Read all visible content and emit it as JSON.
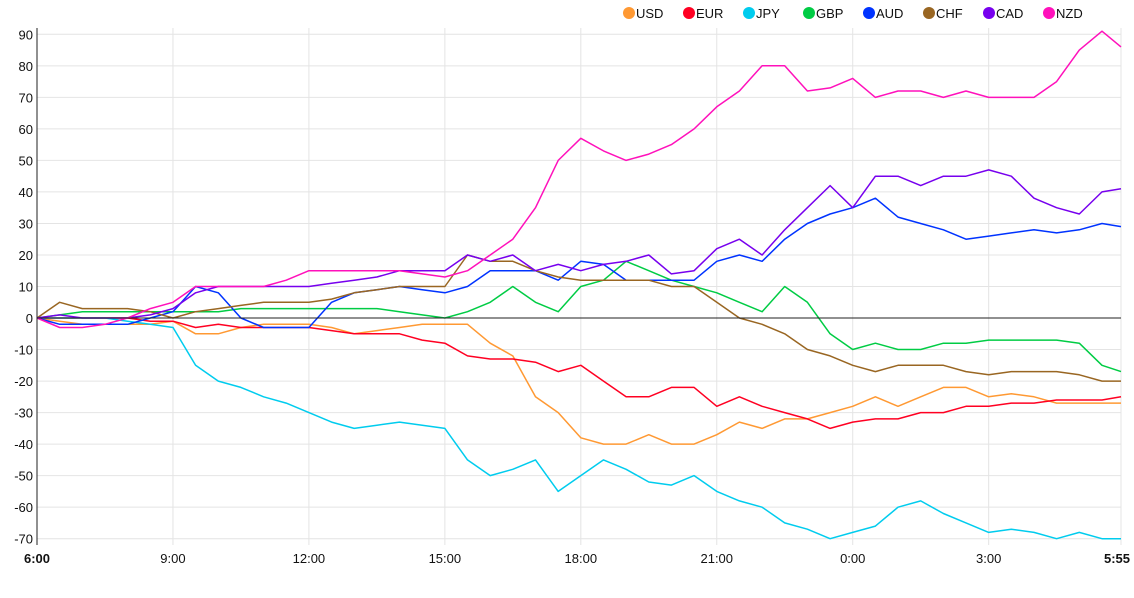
{
  "chart_data": {
    "type": "line",
    "title": "",
    "xlabel": "",
    "ylabel": "",
    "ylim": [
      -72,
      92
    ],
    "xlim_hours_from_start": [
      0,
      23.92
    ],
    "y_ticks": [
      90,
      80,
      70,
      60,
      50,
      40,
      30,
      20,
      10,
      0,
      -10,
      -20,
      -30,
      -40,
      -50,
      -60,
      -70
    ],
    "x_ticks": [
      {
        "h": 0,
        "label": "6:00",
        "bold": true
      },
      {
        "h": 3,
        "label": "9:00",
        "bold": false
      },
      {
        "h": 6,
        "label": "12:00",
        "bold": false
      },
      {
        "h": 9,
        "label": "15:00",
        "bold": false
      },
      {
        "h": 12,
        "label": "18:00",
        "bold": false
      },
      {
        "h": 15,
        "label": "21:00",
        "bold": false
      },
      {
        "h": 18,
        "label": "0:00",
        "bold": false
      },
      {
        "h": 21,
        "label": "3:00",
        "bold": false
      },
      {
        "h": 23.92,
        "label": "5:55",
        "bold": true
      }
    ],
    "grid": true,
    "legend_position": "top-right",
    "x_step_hours": 0.5,
    "x_last_hours": 23.92,
    "series": [
      {
        "name": "USD",
        "color": "#ff9933",
        "values": [
          0,
          -1,
          -2,
          -2,
          -2,
          -2,
          -1,
          -5,
          -5,
          -3,
          -2,
          -2,
          -2,
          -3,
          -5,
          -4,
          -3,
          -2,
          -2,
          -2,
          -8,
          -12,
          -25,
          -30,
          -38,
          -40,
          -40,
          -37,
          -40,
          -40,
          -37,
          -33,
          -35,
          -32,
          -32,
          -30,
          -28,
          -25,
          -28,
          -25,
          -22,
          -22,
          -25,
          -24,
          -25,
          -27,
          -27,
          -27,
          -27
        ]
      },
      {
        "name": "EUR",
        "color": "#ff0022",
        "values": [
          0,
          0,
          0,
          0,
          0,
          -1,
          -1,
          -3,
          -2,
          -3,
          -3,
          -3,
          -3,
          -4,
          -5,
          -5,
          -5,
          -7,
          -8,
          -12,
          -13,
          -13,
          -14,
          -17,
          -15,
          -20,
          -25,
          -25,
          -22,
          -22,
          -28,
          -25,
          -28,
          -30,
          -32,
          -35,
          -33,
          -32,
          -32,
          -30,
          -30,
          -28,
          -28,
          -27,
          -27,
          -26,
          -26,
          -26,
          -25
        ]
      },
      {
        "name": "JPY",
        "color": "#00ccee",
        "values": [
          0,
          0,
          0,
          0,
          -1,
          -2,
          -3,
          -15,
          -20,
          -22,
          -25,
          -27,
          -30,
          -33,
          -35,
          -34,
          -33,
          -34,
          -35,
          -45,
          -50,
          -48,
          -45,
          -55,
          -50,
          -45,
          -48,
          -52,
          -53,
          -50,
          -55,
          -58,
          -60,
          -65,
          -67,
          -70,
          -68,
          -66,
          -60,
          -58,
          -62,
          -65,
          -68,
          -67,
          -68,
          -70,
          -68,
          -70,
          -70
        ]
      },
      {
        "name": "GBP",
        "color": "#00cc44",
        "values": [
          0,
          1,
          2,
          2,
          2,
          2,
          2,
          2,
          2,
          3,
          3,
          3,
          3,
          3,
          3,
          3,
          2,
          1,
          0,
          2,
          5,
          10,
          5,
          2,
          10,
          12,
          18,
          15,
          12,
          10,
          8,
          5,
          2,
          10,
          5,
          -5,
          -10,
          -8,
          -10,
          -10,
          -8,
          -8,
          -7,
          -7,
          -7,
          -7,
          -8,
          -15,
          -17
        ]
      },
      {
        "name": "AUD",
        "color": "#0033ff",
        "values": [
          0,
          -2,
          -2,
          -2,
          -2,
          0,
          2,
          10,
          8,
          0,
          -3,
          -3,
          -3,
          5,
          8,
          9,
          10,
          9,
          8,
          10,
          15,
          15,
          15,
          12,
          18,
          17,
          12,
          12,
          12,
          12,
          18,
          20,
          18,
          25,
          30,
          33,
          35,
          38,
          32,
          30,
          28,
          25,
          26,
          27,
          28,
          27,
          28,
          30,
          29
        ]
      },
      {
        "name": "CHF",
        "color": "#996622",
        "values": [
          0,
          5,
          3,
          3,
          3,
          2,
          0,
          2,
          3,
          4,
          5,
          5,
          5,
          6,
          8,
          9,
          10,
          10,
          10,
          20,
          18,
          18,
          15,
          13,
          12,
          12,
          12,
          12,
          10,
          10,
          5,
          0,
          -2,
          -5,
          -10,
          -12,
          -15,
          -17,
          -15,
          -15,
          -15,
          -17,
          -18,
          -17,
          -17,
          -17,
          -18,
          -20,
          -20
        ]
      },
      {
        "name": "CAD",
        "color": "#7700ee",
        "values": [
          0,
          1,
          0,
          0,
          0,
          1,
          3,
          8,
          10,
          10,
          10,
          10,
          10,
          11,
          12,
          13,
          15,
          15,
          15,
          20,
          18,
          20,
          15,
          17,
          15,
          17,
          18,
          20,
          14,
          15,
          22,
          25,
          20,
          28,
          35,
          42,
          35,
          45,
          45,
          42,
          45,
          45,
          47,
          45,
          38,
          35,
          33,
          40,
          41
        ]
      },
      {
        "name": "NZD",
        "color": "#ff11bb",
        "values": [
          0,
          -3,
          -3,
          -2,
          0,
          3,
          5,
          10,
          10,
          10,
          10,
          12,
          15,
          15,
          15,
          15,
          15,
          14,
          13,
          15,
          20,
          25,
          35,
          50,
          57,
          53,
          50,
          52,
          55,
          60,
          67,
          72,
          80,
          80,
          72,
          73,
          76,
          70,
          72,
          72,
          70,
          72,
          70,
          70,
          70,
          75,
          85,
          91,
          86
        ]
      }
    ]
  }
}
